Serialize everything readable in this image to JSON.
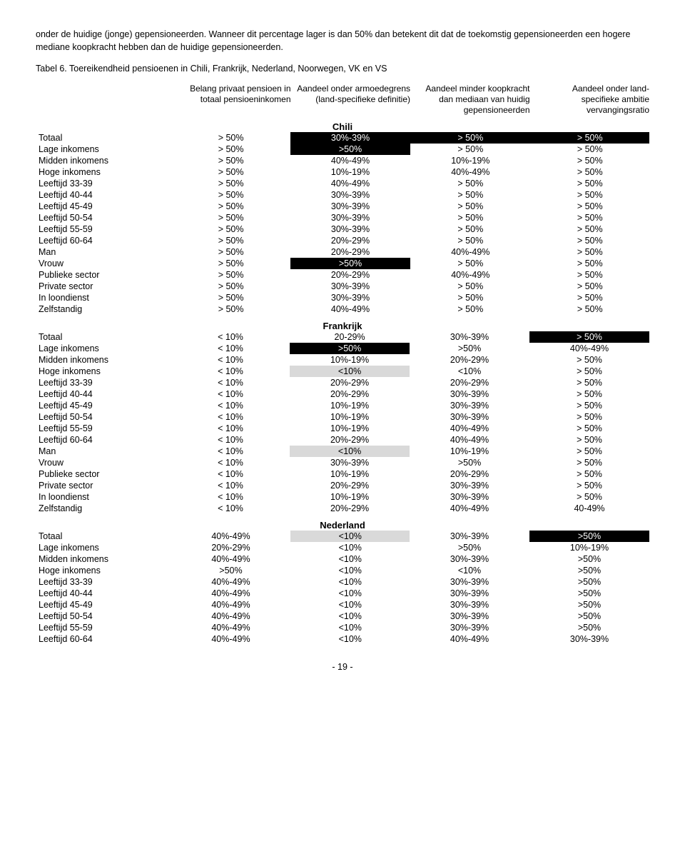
{
  "intro": "onder de huidige (jonge) gepensioneerden. Wanneer dit percentage lager is dan 50% dan betekent dit dat de toekomstig gepensioneerden een hogere mediane koopkracht hebben dan de huidige gepensioneerden.",
  "tabel_label": "Tabel 6. Toereikendheid pensioenen in Chili, Frankrijk, Nederland, Noorwegen, VK en VS",
  "headers": [
    "Belang privaat pensioen in totaal pensioeninkomen",
    "Aandeel onder armoedegrens (land-specifieke definitie)",
    "Aandeel minder koopkracht dan mediaan van huidig gepensioneerden",
    "Aandeel onder land-specifieke ambitie vervangingsratio"
  ],
  "row_labels": [
    "Totaal",
    "Lage inkomens",
    "Midden inkomens",
    "Hoge inkomens",
    "Leeftijd 33-39",
    "Leeftijd 40-44",
    "Leeftijd 45-49",
    "Leeftijd 50-54",
    "Leeftijd 55-59",
    "Leeftijd 60-64",
    "Man",
    "Vrouw",
    "Publieke sector",
    "Private sector",
    "In loondienst",
    "Zelfstandig"
  ],
  "highlight_colors": {
    "black": "#000000",
    "grey": "#d9d9d9"
  },
  "sections": [
    {
      "title": "Chili",
      "rows": [
        [
          [
            "> 50%",
            ""
          ],
          [
            "30%-39%",
            "black"
          ],
          [
            "> 50%",
            "black"
          ],
          [
            "> 50%",
            "black"
          ]
        ],
        [
          [
            "> 50%",
            ""
          ],
          [
            ">50%",
            "black"
          ],
          [
            "> 50%",
            ""
          ],
          [
            "> 50%",
            ""
          ]
        ],
        [
          [
            "> 50%",
            ""
          ],
          [
            "40%-49%",
            ""
          ],
          [
            "10%-19%",
            ""
          ],
          [
            "> 50%",
            ""
          ]
        ],
        [
          [
            "> 50%",
            ""
          ],
          [
            "10%-19%",
            ""
          ],
          [
            "40%-49%",
            ""
          ],
          [
            "> 50%",
            ""
          ]
        ],
        [
          [
            "> 50%",
            ""
          ],
          [
            "40%-49%",
            ""
          ],
          [
            "> 50%",
            ""
          ],
          [
            "> 50%",
            ""
          ]
        ],
        [
          [
            "> 50%",
            ""
          ],
          [
            "30%-39%",
            ""
          ],
          [
            "> 50%",
            ""
          ],
          [
            "> 50%",
            ""
          ]
        ],
        [
          [
            "> 50%",
            ""
          ],
          [
            "30%-39%",
            ""
          ],
          [
            "> 50%",
            ""
          ],
          [
            "> 50%",
            ""
          ]
        ],
        [
          [
            "> 50%",
            ""
          ],
          [
            "30%-39%",
            ""
          ],
          [
            "> 50%",
            ""
          ],
          [
            "> 50%",
            ""
          ]
        ],
        [
          [
            "> 50%",
            ""
          ],
          [
            "30%-39%",
            ""
          ],
          [
            "> 50%",
            ""
          ],
          [
            "> 50%",
            ""
          ]
        ],
        [
          [
            "> 50%",
            ""
          ],
          [
            "20%-29%",
            ""
          ],
          [
            "> 50%",
            ""
          ],
          [
            "> 50%",
            ""
          ]
        ],
        [
          [
            "> 50%",
            ""
          ],
          [
            "20%-29%",
            ""
          ],
          [
            "40%-49%",
            ""
          ],
          [
            "> 50%",
            ""
          ]
        ],
        [
          [
            "> 50%",
            ""
          ],
          [
            ">50%",
            "black"
          ],
          [
            "> 50%",
            ""
          ],
          [
            "> 50%",
            ""
          ]
        ],
        [
          [
            "> 50%",
            ""
          ],
          [
            "20%-29%",
            ""
          ],
          [
            "40%-49%",
            ""
          ],
          [
            "> 50%",
            ""
          ]
        ],
        [
          [
            "> 50%",
            ""
          ],
          [
            "30%-39%",
            ""
          ],
          [
            "> 50%",
            ""
          ],
          [
            "> 50%",
            ""
          ]
        ],
        [
          [
            "> 50%",
            ""
          ],
          [
            "30%-39%",
            ""
          ],
          [
            "> 50%",
            ""
          ],
          [
            "> 50%",
            ""
          ]
        ],
        [
          [
            "> 50%",
            ""
          ],
          [
            "40%-49%",
            ""
          ],
          [
            "> 50%",
            ""
          ],
          [
            "> 50%",
            ""
          ]
        ]
      ]
    },
    {
      "title": "Frankrijk",
      "rows": [
        [
          [
            "< 10%",
            ""
          ],
          [
            "20-29%",
            ""
          ],
          [
            "30%-39%",
            ""
          ],
          [
            "> 50%",
            "black"
          ]
        ],
        [
          [
            "< 10%",
            ""
          ],
          [
            ">50%",
            "black"
          ],
          [
            ">50%",
            ""
          ],
          [
            "40%-49%",
            ""
          ]
        ],
        [
          [
            "< 10%",
            ""
          ],
          [
            "10%-19%",
            ""
          ],
          [
            "20%-29%",
            ""
          ],
          [
            "> 50%",
            ""
          ]
        ],
        [
          [
            "< 10%",
            ""
          ],
          [
            "<10%",
            "grey"
          ],
          [
            "<10%",
            ""
          ],
          [
            "> 50%",
            ""
          ]
        ],
        [
          [
            "< 10%",
            ""
          ],
          [
            "20%-29%",
            ""
          ],
          [
            "20%-29%",
            ""
          ],
          [
            "> 50%",
            ""
          ]
        ],
        [
          [
            "< 10%",
            ""
          ],
          [
            "20%-29%",
            ""
          ],
          [
            "30%-39%",
            ""
          ],
          [
            "> 50%",
            ""
          ]
        ],
        [
          [
            "< 10%",
            ""
          ],
          [
            "10%-19%",
            ""
          ],
          [
            "30%-39%",
            ""
          ],
          [
            "> 50%",
            ""
          ]
        ],
        [
          [
            "< 10%",
            ""
          ],
          [
            "10%-19%",
            ""
          ],
          [
            "30%-39%",
            ""
          ],
          [
            "> 50%",
            ""
          ]
        ],
        [
          [
            "< 10%",
            ""
          ],
          [
            "10%-19%",
            ""
          ],
          [
            "40%-49%",
            ""
          ],
          [
            "> 50%",
            ""
          ]
        ],
        [
          [
            "< 10%",
            ""
          ],
          [
            "20%-29%",
            ""
          ],
          [
            "40%-49%",
            ""
          ],
          [
            "> 50%",
            ""
          ]
        ],
        [
          [
            "< 10%",
            ""
          ],
          [
            "<10%",
            "grey"
          ],
          [
            "10%-19%",
            ""
          ],
          [
            "> 50%",
            ""
          ]
        ],
        [
          [
            "< 10%",
            ""
          ],
          [
            "30%-39%",
            ""
          ],
          [
            ">50%",
            ""
          ],
          [
            "> 50%",
            ""
          ]
        ],
        [
          [
            "< 10%",
            ""
          ],
          [
            "10%-19%",
            ""
          ],
          [
            "20%-29%",
            ""
          ],
          [
            "> 50%",
            ""
          ]
        ],
        [
          [
            "< 10%",
            ""
          ],
          [
            "20%-29%",
            ""
          ],
          [
            "30%-39%",
            ""
          ],
          [
            "> 50%",
            ""
          ]
        ],
        [
          [
            "< 10%",
            ""
          ],
          [
            "10%-19%",
            ""
          ],
          [
            "30%-39%",
            ""
          ],
          [
            "> 50%",
            ""
          ]
        ],
        [
          [
            "< 10%",
            ""
          ],
          [
            "20%-29%",
            ""
          ],
          [
            "40%-49%",
            ""
          ],
          [
            "40-49%",
            ""
          ]
        ]
      ]
    },
    {
      "title": "Nederland",
      "row_count": 10,
      "rows": [
        [
          [
            "40%-49%",
            ""
          ],
          [
            "<10%",
            "grey"
          ],
          [
            "30%-39%",
            ""
          ],
          [
            ">50%",
            "black"
          ]
        ],
        [
          [
            "20%-29%",
            ""
          ],
          [
            "<10%",
            ""
          ],
          [
            ">50%",
            ""
          ],
          [
            "10%-19%",
            ""
          ]
        ],
        [
          [
            "40%-49%",
            ""
          ],
          [
            "<10%",
            ""
          ],
          [
            "30%-39%",
            ""
          ],
          [
            ">50%",
            ""
          ]
        ],
        [
          [
            ">50%",
            ""
          ],
          [
            "<10%",
            ""
          ],
          [
            "<10%",
            ""
          ],
          [
            ">50%",
            ""
          ]
        ],
        [
          [
            "40%-49%",
            ""
          ],
          [
            "<10%",
            ""
          ],
          [
            "30%-39%",
            ""
          ],
          [
            ">50%",
            ""
          ]
        ],
        [
          [
            "40%-49%",
            ""
          ],
          [
            "<10%",
            ""
          ],
          [
            "30%-39%",
            ""
          ],
          [
            ">50%",
            ""
          ]
        ],
        [
          [
            "40%-49%",
            ""
          ],
          [
            "<10%",
            ""
          ],
          [
            "30%-39%",
            ""
          ],
          [
            ">50%",
            ""
          ]
        ],
        [
          [
            "40%-49%",
            ""
          ],
          [
            "<10%",
            ""
          ],
          [
            "30%-39%",
            ""
          ],
          [
            ">50%",
            ""
          ]
        ],
        [
          [
            "40%-49%",
            ""
          ],
          [
            "<10%",
            ""
          ],
          [
            "30%-39%",
            ""
          ],
          [
            ">50%",
            ""
          ]
        ],
        [
          [
            "40%-49%",
            ""
          ],
          [
            "<10%",
            ""
          ],
          [
            "40%-49%",
            ""
          ],
          [
            "30%-39%",
            ""
          ]
        ]
      ]
    }
  ],
  "page_number": "- 19 -"
}
